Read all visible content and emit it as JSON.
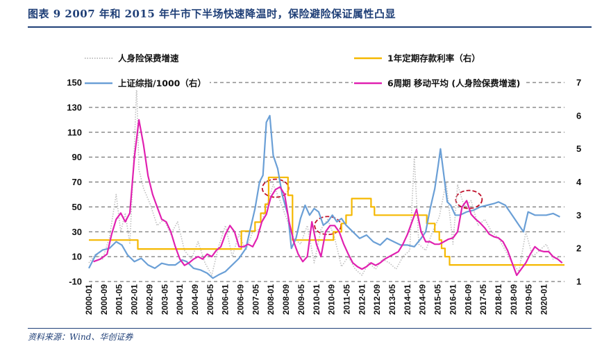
{
  "header": {
    "title": "图表 9   2007 年和 2015 年牛市下半场快速降温时，保险避险保证属性凸显"
  },
  "footer": {
    "source": "资料来源：Wind、华创证券"
  },
  "chart_data": {
    "type": "line",
    "title": "2007 年和 2015 年牛市下半场快速降温时，保险避险保证属性凸显",
    "left_axis": {
      "ylim": [
        -10,
        150
      ],
      "ticks": [
        "-10",
        "10",
        "30",
        "50",
        "70",
        "90",
        "110",
        "130",
        "150"
      ]
    },
    "right_axis": {
      "ylim": [
        1,
        7
      ],
      "ticks": [
        "1",
        "2",
        "3",
        "4",
        "5",
        "6",
        "7"
      ]
    },
    "x_ticks": [
      "2000-01",
      "2000-09",
      "2001-05",
      "2002-01",
      "2002-09",
      "2003-05",
      "2004-01",
      "2004-09",
      "2005-05",
      "2006-01",
      "2006-09",
      "2007-05",
      "2008-01",
      "2008-09",
      "2009-05",
      "2010-01",
      "2010-09",
      "2011-05",
      "2012-01",
      "2012-09",
      "2013-05",
      "2014-01",
      "2014-09",
      "2015-05",
      "2016-01",
      "2016-09",
      "2017-05",
      "2018-01",
      "2018-09",
      "2019-05",
      "2020-01"
    ],
    "x_range": [
      2000.0,
      2020.9
    ],
    "legend": {
      "placement": "top",
      "entries": [
        {
          "name": "人身险保费增速",
          "color": "#bfbfbf",
          "style": "dotted"
        },
        {
          "name": "1年定期存款利率（右）",
          "color": "#f5b800",
          "style": "solid"
        },
        {
          "name": "上证综指/1000（右）",
          "color": "#6a9fd6",
          "style": "solid"
        },
        {
          "name": "6周期 移动平均 (人身险保费增速)",
          "color": "#e020b0",
          "style": "solid"
        }
      ]
    },
    "grid": true,
    "highlight_circles": [
      {
        "x": 2008.2,
        "y": 65
      },
      {
        "x": 2010.5,
        "y": 35
      },
      {
        "x": 2016.7,
        "y": 56
      }
    ],
    "series": [
      {
        "name": "人身险保费增速",
        "axis": "left",
        "color": "#bfbfbf",
        "x": [
          2000.0,
          2000.3,
          2000.6,
          2000.9,
          2001.2,
          2001.4,
          2001.6,
          2001.8,
          2002.0,
          2002.1,
          2002.2,
          2002.4,
          2002.7,
          2003.0,
          2003.3,
          2003.6,
          2003.9,
          2004.2,
          2004.5,
          2004.8,
          2005.1,
          2005.4,
          2005.7,
          2006.0,
          2006.3,
          2006.6,
          2006.9,
          2007.2,
          2007.5,
          2007.8,
          2008.1,
          2008.4,
          2008.7,
          2009.0,
          2009.3,
          2009.6,
          2009.9,
          2010.2,
          2010.5,
          2010.8,
          2011.1,
          2011.4,
          2011.7,
          2012.0,
          2012.3,
          2012.6,
          2012.9,
          2013.2,
          2013.5,
          2013.8,
          2014.1,
          2014.3,
          2014.5,
          2014.8,
          2015.1,
          2015.4,
          2015.7,
          2016.0,
          2016.2,
          2016.5,
          2016.8,
          2017.1,
          2017.4,
          2017.7,
          2018.0,
          2018.3,
          2018.6,
          2018.9,
          2019.2,
          2019.5,
          2019.8,
          2020.1,
          2020.4,
          2020.7
        ],
        "values": [
          5,
          12,
          8,
          25,
          60,
          30,
          45,
          20,
          100,
          148,
          80,
          65,
          52,
          35,
          40,
          28,
          38,
          15,
          8,
          22,
          5,
          -5,
          18,
          35,
          10,
          28,
          15,
          30,
          32,
          50,
          68,
          55,
          40,
          25,
          20,
          35,
          5,
          32,
          40,
          25,
          2,
          10,
          0,
          -5,
          5,
          0,
          8,
          5,
          0,
          10,
          15,
          90,
          20,
          15,
          30,
          42,
          70,
          20,
          68,
          50,
          55,
          35,
          40,
          30,
          25,
          15,
          5,
          -2,
          30,
          10,
          15,
          20,
          8,
          10
        ]
      },
      {
        "name": "1年定期存款利率（右）",
        "axis": "right",
        "color": "#f5b800",
        "x": [
          2000.0,
          2002.15,
          2002.15,
          2006.7,
          2006.7,
          2007.3,
          2007.3,
          2007.55,
          2007.55,
          2007.75,
          2007.75,
          2007.9,
          2007.9,
          2008.75,
          2008.75,
          2008.95,
          2008.95,
          2010.75,
          2010.75,
          2011.1,
          2011.1,
          2011.3,
          2011.3,
          2011.55,
          2011.55,
          2012.4,
          2012.4,
          2012.55,
          2012.55,
          2014.85,
          2014.85,
          2015.2,
          2015.2,
          2015.4,
          2015.4,
          2015.5,
          2015.5,
          2015.65,
          2015.65,
          2015.85,
          2015.85,
          2020.9
        ],
        "values": [
          2.25,
          2.25,
          1.98,
          1.98,
          2.52,
          2.52,
          2.79,
          2.79,
          3.06,
          3.06,
          3.33,
          3.33,
          4.14,
          4.14,
          3.6,
          3.6,
          2.25,
          2.25,
          2.5,
          2.5,
          2.75,
          2.75,
          3.0,
          3.0,
          3.5,
          3.5,
          3.25,
          3.25,
          3.0,
          3.0,
          2.75,
          2.75,
          2.5,
          2.5,
          2.25,
          2.25,
          2.0,
          2.0,
          1.75,
          1.75,
          1.5,
          1.5
        ]
      },
      {
        "name": "上证综指/1000（右）",
        "axis": "right",
        "color": "#6a9fd6",
        "x": [
          2000.0,
          2000.3,
          2000.6,
          2000.9,
          2001.2,
          2001.45,
          2001.7,
          2002.0,
          2002.3,
          2002.6,
          2002.9,
          2003.2,
          2003.5,
          2003.8,
          2004.1,
          2004.3,
          2004.6,
          2004.9,
          2005.2,
          2005.45,
          2005.7,
          2006.0,
          2006.3,
          2006.6,
          2006.9,
          2007.1,
          2007.3,
          2007.5,
          2007.65,
          2007.8,
          2007.95,
          2008.1,
          2008.3,
          2008.5,
          2008.75,
          2008.9,
          2009.1,
          2009.3,
          2009.5,
          2009.7,
          2009.9,
          2010.1,
          2010.3,
          2010.5,
          2010.7,
          2010.9,
          2011.1,
          2011.3,
          2011.6,
          2011.9,
          2012.2,
          2012.5,
          2012.8,
          2013.1,
          2013.4,
          2013.7,
          2014.0,
          2014.3,
          2014.6,
          2014.8,
          2015.0,
          2015.2,
          2015.35,
          2015.45,
          2015.6,
          2015.75,
          2015.9,
          2016.1,
          2016.3,
          2016.6,
          2016.9,
          2017.2,
          2017.5,
          2017.8,
          2018.0,
          2018.3,
          2018.6,
          2018.9,
          2019.1,
          2019.3,
          2019.6,
          2019.9,
          2020.1,
          2020.4,
          2020.7
        ],
        "values": [
          1.4,
          1.8,
          1.95,
          2.0,
          2.2,
          2.1,
          1.8,
          1.6,
          1.7,
          1.5,
          1.4,
          1.55,
          1.5,
          1.5,
          1.65,
          1.6,
          1.4,
          1.35,
          1.25,
          1.1,
          1.2,
          1.3,
          1.5,
          1.7,
          2.0,
          2.6,
          3.2,
          4.0,
          4.2,
          5.8,
          6.0,
          4.8,
          4.4,
          3.6,
          3.0,
          2.0,
          2.3,
          2.9,
          3.3,
          3.0,
          3.2,
          3.1,
          2.7,
          2.8,
          3.0,
          2.8,
          2.9,
          2.7,
          2.5,
          2.3,
          2.4,
          2.2,
          2.1,
          2.3,
          2.2,
          2.1,
          2.1,
          2.05,
          2.3,
          2.5,
          3.2,
          3.8,
          4.5,
          5.0,
          4.2,
          3.4,
          3.3,
          3.0,
          3.0,
          3.1,
          3.15,
          3.25,
          3.3,
          3.35,
          3.4,
          3.3,
          3.0,
          2.7,
          2.5,
          3.1,
          3.0,
          3.0,
          3.0,
          3.05,
          2.95
        ]
      },
      {
        "name": "6周期 移动平均 (人身险保费增速)",
        "axis": "left",
        "color": "#e020b0",
        "x": [
          2000.2,
          2000.5,
          2000.8,
          2001.0,
          2001.2,
          2001.4,
          2001.6,
          2001.8,
          2002.0,
          2002.2,
          2002.4,
          2002.6,
          2002.8,
          2003.0,
          2003.2,
          2003.4,
          2003.6,
          2003.8,
          2004.0,
          2004.2,
          2004.4,
          2004.6,
          2004.8,
          2005.0,
          2005.2,
          2005.4,
          2005.6,
          2005.8,
          2006.0,
          2006.2,
          2006.4,
          2006.6,
          2006.8,
          2007.0,
          2007.2,
          2007.4,
          2007.6,
          2007.8,
          2008.0,
          2008.2,
          2008.4,
          2008.6,
          2008.8,
          2009.0,
          2009.2,
          2009.4,
          2009.6,
          2009.8,
          2010.0,
          2010.2,
          2010.4,
          2010.6,
          2010.8,
          2011.0,
          2011.2,
          2011.4,
          2011.6,
          2011.8,
          2012.0,
          2012.2,
          2012.4,
          2012.6,
          2012.8,
          2013.0,
          2013.2,
          2013.4,
          2013.6,
          2013.8,
          2014.0,
          2014.2,
          2014.4,
          2014.6,
          2014.8,
          2015.0,
          2015.2,
          2015.4,
          2015.6,
          2015.8,
          2016.0,
          2016.2,
          2016.4,
          2016.6,
          2016.8,
          2017.0,
          2017.2,
          2017.4,
          2017.6,
          2017.8,
          2018.0,
          2018.2,
          2018.4,
          2018.6,
          2018.8,
          2019.0,
          2019.2,
          2019.4,
          2019.6,
          2019.8,
          2020.0,
          2020.2,
          2020.4,
          2020.6,
          2020.8
        ],
        "values": [
          6,
          8,
          12,
          28,
          40,
          45,
          38,
          45,
          90,
          120,
          100,
          75,
          60,
          50,
          40,
          38,
          30,
          18,
          8,
          3,
          5,
          8,
          10,
          8,
          12,
          10,
          15,
          18,
          28,
          35,
          30,
          18,
          18,
          20,
          18,
          25,
          38,
          44,
          58,
          64,
          66,
          60,
          38,
          22,
          12,
          6,
          10,
          38,
          20,
          10,
          30,
          35,
          35,
          30,
          20,
          12,
          5,
          2,
          0,
          2,
          5,
          3,
          5,
          8,
          10,
          12,
          14,
          20,
          28,
          38,
          48,
          30,
          22,
          22,
          20,
          20,
          22,
          24,
          25,
          30,
          50,
          55,
          44,
          40,
          37,
          33,
          28,
          26,
          25,
          22,
          15,
          5,
          -5,
          0,
          5,
          12,
          18,
          15,
          14,
          14,
          10,
          8,
          5
        ]
      }
    ]
  }
}
